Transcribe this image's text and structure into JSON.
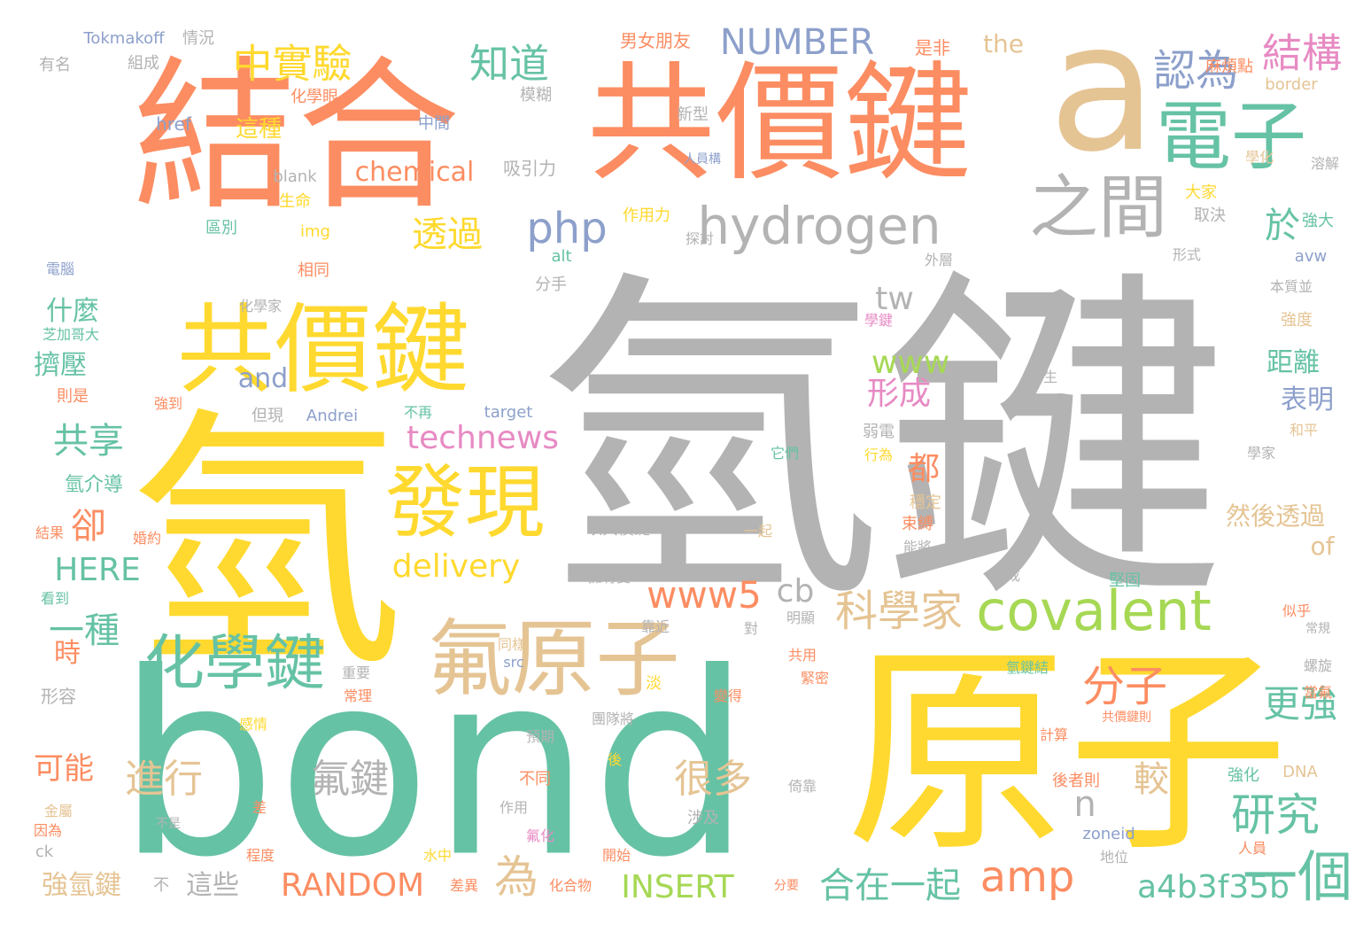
{
  "colors": {
    "orange": "#fc8d62",
    "gray": "#b3b3b3",
    "yellow": "#ffd92f",
    "teal": "#66c2a5",
    "tan": "#e5c494",
    "green": "#a6d854",
    "blue": "#8da0cb",
    "pink": "#e78ac3"
  },
  "words": [
    {
      "text": "氫鍵",
      "color": "gray"
    },
    {
      "text": "bond",
      "color": "teal"
    },
    {
      "text": "原子",
      "color": "yellow"
    },
    {
      "text": "氫",
      "color": "yellow"
    },
    {
      "text": "結合",
      "color": "orange"
    },
    {
      "text": "共價鍵",
      "color": "orange"
    },
    {
      "text": "a",
      "color": "tan"
    },
    {
      "text": "共價鍵",
      "color": "yellow"
    },
    {
      "text": "電子",
      "color": "teal"
    },
    {
      "text": "hydrogen",
      "color": "gray"
    },
    {
      "text": "之間",
      "color": "gray"
    },
    {
      "text": "氟原子",
      "color": "tan"
    },
    {
      "text": "發現",
      "color": "yellow"
    },
    {
      "text": "化學鍵",
      "color": "teal"
    },
    {
      "text": "covalent",
      "color": "green"
    },
    {
      "text": "科學家",
      "color": "tan"
    },
    {
      "text": "中實驗",
      "color": "yellow"
    },
    {
      "text": "知道",
      "color": "teal"
    },
    {
      "text": "NUMBER",
      "color": "blue"
    },
    {
      "text": "認為",
      "color": "blue"
    },
    {
      "text": "結構",
      "color": "pink"
    },
    {
      "text": "一個",
      "color": "teal"
    },
    {
      "text": "研究",
      "color": "teal"
    },
    {
      "text": "分子",
      "color": "orange"
    },
    {
      "text": "更強",
      "color": "teal"
    },
    {
      "text": "a4b3f35b",
      "color": "teal"
    },
    {
      "text": "amp",
      "color": "orange"
    },
    {
      "text": "合在一起",
      "color": "teal"
    },
    {
      "text": "INSERT",
      "color": "green"
    },
    {
      "text": "RANDOM",
      "color": "orange"
    },
    {
      "text": "為",
      "color": "tan"
    },
    {
      "text": "進行",
      "color": "tan"
    },
    {
      "text": "氟鍵",
      "color": "gray"
    },
    {
      "text": "很多",
      "color": "tan"
    },
    {
      "text": "較",
      "color": "tan"
    },
    {
      "text": "n",
      "color": "gray"
    },
    {
      "text": "www5",
      "color": "orange"
    },
    {
      "text": "cb",
      "color": "gray"
    },
    {
      "text": "delivery",
      "color": "yellow"
    },
    {
      "text": "technews",
      "color": "pink"
    },
    {
      "text": "php",
      "color": "blue"
    },
    {
      "text": "透過",
      "color": "yellow"
    },
    {
      "text": "chemical",
      "color": "orange"
    },
    {
      "text": "www",
      "color": "green"
    },
    {
      "text": "tw",
      "color": "gray"
    },
    {
      "text": "形成",
      "color": "pink"
    },
    {
      "text": "都",
      "color": "orange"
    },
    {
      "text": "於",
      "color": "teal"
    },
    {
      "text": "共享",
      "color": "teal"
    },
    {
      "text": "卻",
      "color": "orange"
    },
    {
      "text": "HERE",
      "color": "teal"
    },
    {
      "text": "一種",
      "color": "teal"
    },
    {
      "text": "什麼",
      "color": "teal"
    },
    {
      "text": "擠壓",
      "color": "teal"
    },
    {
      "text": "and",
      "color": "blue"
    },
    {
      "text": "時",
      "color": "orange"
    },
    {
      "text": "可能",
      "color": "orange"
    },
    {
      "text": "強氫鍵",
      "color": "tan"
    },
    {
      "text": "這些",
      "color": "gray"
    },
    {
      "text": "距離",
      "color": "teal"
    },
    {
      "text": "表明",
      "color": "blue"
    },
    {
      "text": "然後透過",
      "color": "tan"
    },
    {
      "text": "of",
      "color": "tan"
    },
    {
      "text": "the",
      "color": "tan"
    },
    {
      "text": "Tokmakoff",
      "color": "blue"
    },
    {
      "text": "情況",
      "color": "gray"
    },
    {
      "text": "男女朋友",
      "color": "orange"
    },
    {
      "text": "是非",
      "color": "orange"
    },
    {
      "text": "麻煩點",
      "color": "orange"
    },
    {
      "text": "border",
      "color": "tan"
    },
    {
      "text": "有名",
      "color": "gray"
    },
    {
      "text": "組成",
      "color": "gray"
    },
    {
      "text": "href",
      "color": "blue"
    },
    {
      "text": "中間",
      "color": "blue"
    },
    {
      "text": "這種",
      "color": "yellow"
    },
    {
      "text": "化學眼",
      "color": "orange"
    },
    {
      "text": "模糊",
      "color": "gray"
    },
    {
      "text": "新型",
      "color": "gray"
    },
    {
      "text": "吸引力",
      "color": "gray"
    },
    {
      "text": "人員構",
      "color": "blue"
    },
    {
      "text": "學化",
      "color": "tan"
    },
    {
      "text": "溶解",
      "color": "gray"
    },
    {
      "text": "blank",
      "color": "gray"
    },
    {
      "text": "生命",
      "color": "yellow"
    },
    {
      "text": "區別",
      "color": "teal"
    },
    {
      "text": "img",
      "color": "yellow"
    },
    {
      "text": "作用力",
      "color": "yellow"
    },
    {
      "text": "探討",
      "color": "gray"
    },
    {
      "text": "大家",
      "color": "yellow"
    },
    {
      "text": "取決",
      "color": "gray"
    },
    {
      "text": "強大",
      "color": "teal"
    },
    {
      "text": "alt",
      "color": "teal"
    },
    {
      "text": "形式",
      "color": "gray"
    },
    {
      "text": "avw",
      "color": "blue"
    },
    {
      "text": "電腦",
      "color": "blue"
    },
    {
      "text": "相同",
      "color": "orange"
    },
    {
      "text": "分手",
      "color": "gray"
    },
    {
      "text": "外層",
      "color": "gray"
    },
    {
      "text": "本質並",
      "color": "gray"
    },
    {
      "text": "化學家",
      "color": "gray"
    },
    {
      "text": "學鍵",
      "color": "pink"
    },
    {
      "text": "芝加哥大",
      "color": "teal"
    },
    {
      "text": "強度",
      "color": "tan"
    },
    {
      "text": "則是",
      "color": "orange"
    },
    {
      "text": "強到",
      "color": "orange"
    },
    {
      "text": "但現",
      "color": "gray"
    },
    {
      "text": "Andrei",
      "color": "blue"
    },
    {
      "text": "不再",
      "color": "teal"
    },
    {
      "text": "target",
      "color": "blue"
    },
    {
      "text": "發生",
      "color": "gray"
    },
    {
      "text": "和平",
      "color": "tan"
    },
    {
      "text": "弱電",
      "color": "gray"
    },
    {
      "text": "行為",
      "color": "yellow"
    },
    {
      "text": "學家",
      "color": "gray"
    },
    {
      "text": "氫介導",
      "color": "teal"
    },
    {
      "text": "它們",
      "color": "teal"
    },
    {
      "text": "穩定",
      "color": "tan"
    },
    {
      "text": "束縛",
      "color": "orange"
    },
    {
      "text": "以共價鍵",
      "color": "gray"
    },
    {
      "text": "一起",
      "color": "tan"
    },
    {
      "text": "能將",
      "color": "gray"
    },
    {
      "text": "結果",
      "color": "orange"
    },
    {
      "text": "婚約",
      "color": "orange"
    },
    {
      "text": "擁有雙",
      "color": "gray"
    },
    {
      "text": "構成",
      "color": "gray"
    },
    {
      "text": "堅固",
      "color": "teal"
    },
    {
      "text": "似乎",
      "color": "orange"
    },
    {
      "text": "常規",
      "color": "gray"
    },
    {
      "text": "看到",
      "color": "teal"
    },
    {
      "text": "靠近",
      "color": "gray"
    },
    {
      "text": "明顯",
      "color": "gray"
    },
    {
      "text": "對",
      "color": "gray"
    },
    {
      "text": "同樣",
      "color": "tan"
    },
    {
      "text": "src",
      "color": "blue"
    },
    {
      "text": "重要",
      "color": "gray"
    },
    {
      "text": "常理",
      "color": "orange"
    },
    {
      "text": "淡",
      "color": "yellow"
    },
    {
      "text": "變得",
      "color": "orange"
    },
    {
      "text": "共用",
      "color": "orange"
    },
    {
      "text": "緊密",
      "color": "orange"
    },
    {
      "text": "氫鍵結",
      "color": "teal"
    },
    {
      "text": "螺旋",
      "color": "gray"
    },
    {
      "text": "當氟",
      "color": "orange"
    },
    {
      "text": "形容",
      "color": "gray"
    },
    {
      "text": "共價鍵則",
      "color": "orange"
    },
    {
      "text": "感情",
      "color": "yellow"
    },
    {
      "text": "團隊將",
      "color": "gray"
    },
    {
      "text": "預期",
      "color": "gray"
    },
    {
      "text": "計算",
      "color": "orange"
    },
    {
      "text": "後",
      "color": "yellow"
    },
    {
      "text": "強化",
      "color": "teal"
    },
    {
      "text": "DNA",
      "color": "tan"
    },
    {
      "text": "後者則",
      "color": "orange"
    },
    {
      "text": "不同",
      "color": "orange"
    },
    {
      "text": "金屬",
      "color": "tan"
    },
    {
      "text": "差",
      "color": "orange"
    },
    {
      "text": "作用",
      "color": "gray"
    },
    {
      "text": "涉及",
      "color": "gray"
    },
    {
      "text": "倚靠",
      "color": "gray"
    },
    {
      "text": "不是",
      "color": "gray"
    },
    {
      "text": "因為",
      "color": "orange"
    },
    {
      "text": "氟化",
      "color": "pink"
    },
    {
      "text": "zoneid",
      "color": "blue"
    },
    {
      "text": "ck",
      "color": "gray"
    },
    {
      "text": "程度",
      "color": "orange"
    },
    {
      "text": "水中",
      "color": "yellow"
    },
    {
      "text": "開始",
      "color": "orange"
    },
    {
      "text": "地位",
      "color": "gray"
    },
    {
      "text": "人員",
      "color": "orange"
    },
    {
      "text": "差異",
      "color": "orange"
    },
    {
      "text": "化合物",
      "color": "orange"
    },
    {
      "text": "分要",
      "color": "orange"
    },
    {
      "text": "不",
      "color": "gray"
    }
  ]
}
